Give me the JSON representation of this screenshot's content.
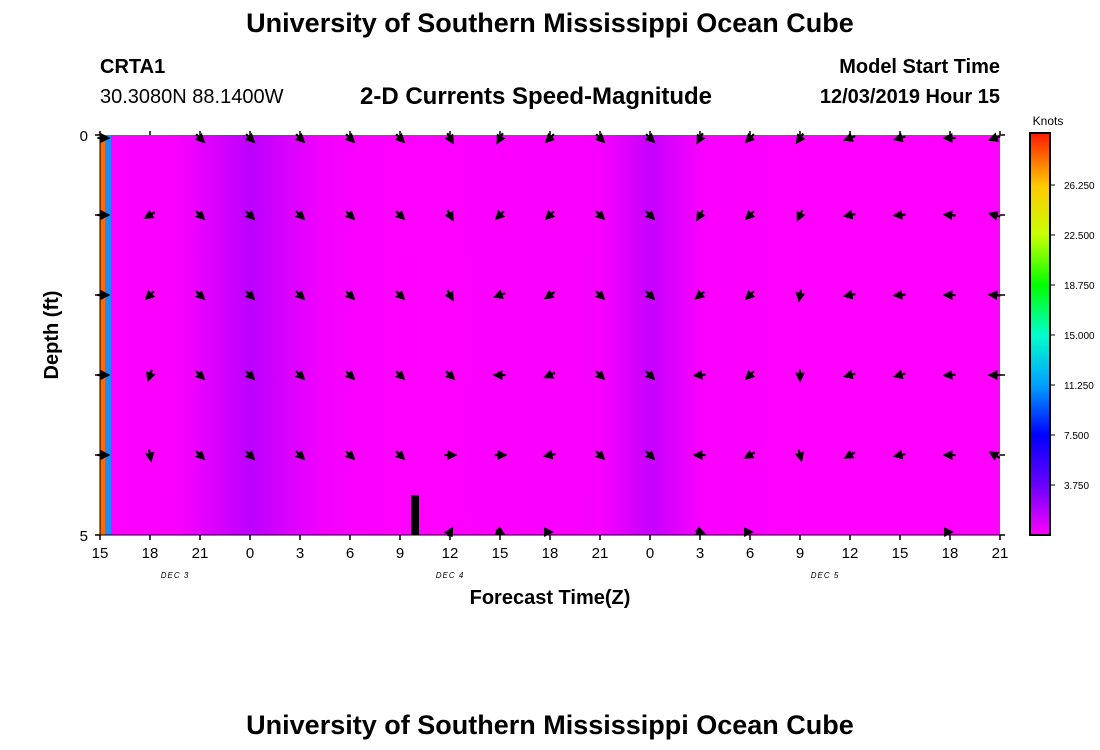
{
  "header": {
    "title": "University of Southern Mississippi Ocean Cube",
    "station": "CRTA1",
    "coords": "30.3080N 88.1400W",
    "subtitle": "2-D Currents Speed-Magnitude",
    "model_label": "Model Start Time",
    "model_time": "12/03/2019 Hour 15"
  },
  "footer": {
    "title": "University of Southern Mississippi Ocean Cube"
  },
  "colors": {
    "field_magenta": "#ff00ff",
    "field_violet": "#b800ff",
    "left_strip_orange": "#ff6a00",
    "left_strip_blue": "#1a8cff"
  },
  "chart_data": {
    "type": "heatmap",
    "xlabel": "Forecast Time(Z)",
    "ylabel": "Depth (ft)",
    "x_ticks": [
      "15",
      "18",
      "21",
      "0",
      "3",
      "6",
      "9",
      "12",
      "15",
      "18",
      "21",
      "0",
      "3",
      "6",
      "9",
      "12",
      "15",
      "18",
      "21"
    ],
    "day_labels": [
      {
        "label": "DEC 3",
        "at_tick": 1.5
      },
      {
        "label": "DEC 4",
        "at_tick": 7
      },
      {
        "label": "DEC 5",
        "at_tick": 14.5
      }
    ],
    "y_ticks": [
      {
        "label": "0",
        "value": 0
      },
      {
        "label": "",
        "value": 1
      },
      {
        "label": "",
        "value": 2
      },
      {
        "label": "",
        "value": 3
      },
      {
        "label": "",
        "value": 4
      },
      {
        "label": "5",
        "value": 5
      }
    ],
    "ylim": [
      0,
      5
    ],
    "colorbar": {
      "unit": "Knots",
      "ticks": [
        "26.250",
        "22.500",
        "18.750",
        "15.000",
        "11.250",
        "7.500",
        "3.750"
      ],
      "tick_values": [
        26.25,
        22.5,
        18.75,
        15.0,
        11.25,
        7.5,
        3.75
      ],
      "range": [
        0,
        30
      ]
    },
    "background_speed_profile": {
      "tick_index": [
        0,
        1.6,
        3.0,
        4.5,
        6.0,
        10.0,
        11.0,
        12.0,
        14.0,
        16.0,
        18.0
      ],
      "shade": [
        0.0,
        0.1,
        0.95,
        0.15,
        0.0,
        0.1,
        0.8,
        0.1,
        0.0,
        0.0,
        0.0
      ]
    },
    "current_now_marker": {
      "tick_index": 6.3,
      "depth_from": 4.5,
      "depth_to": 5
    },
    "vector_time_index": [
      0,
      1,
      2,
      3,
      4,
      5,
      6,
      7,
      8,
      9,
      10,
      11,
      12,
      13,
      14,
      15,
      16,
      17,
      18
    ],
    "vector_depths": [
      0,
      1,
      2,
      3,
      4,
      5
    ],
    "vector_angles_deg": [
      [
        0,
        210,
        45,
        45,
        45,
        45,
        45,
        60,
        120,
        135,
        45,
        45,
        120,
        135,
        125,
        160,
        165,
        180,
        160
      ],
      [
        0,
        150,
        45,
        45,
        45,
        45,
        45,
        60,
        135,
        135,
        45,
        45,
        120,
        135,
        115,
        170,
        175,
        185,
        195
      ],
      [
        0,
        135,
        45,
        45,
        45,
        45,
        45,
        60,
        160,
        145,
        45,
        45,
        140,
        135,
        100,
        170,
        175,
        180,
        185
      ],
      [
        0,
        110,
        45,
        45,
        45,
        45,
        45,
        45,
        180,
        155,
        45,
        45,
        175,
        135,
        90,
        165,
        165,
        175,
        180
      ],
      [
        0,
        80,
        45,
        45,
        45,
        45,
        45,
        0,
        0,
        170,
        45,
        45,
        180,
        150,
        75,
        150,
        170,
        180,
        210
      ],
      [
        0,
        0,
        0,
        0,
        0,
        0,
        0,
        300,
        30,
        0,
        0,
        0,
        20,
        0,
        0,
        0,
        0,
        0,
        0
      ]
    ],
    "vector_lengths": [
      [
        11,
        0,
        11,
        11,
        11,
        11,
        11,
        11,
        11,
        11,
        11,
        11,
        11,
        11,
        11,
        11,
        11,
        11,
        11
      ],
      [
        11,
        11,
        11,
        11,
        11,
        11,
        11,
        11,
        11,
        11,
        11,
        11,
        11,
        11,
        11,
        11,
        11,
        11,
        11
      ],
      [
        11,
        11,
        11,
        11,
        11,
        11,
        11,
        11,
        11,
        11,
        11,
        11,
        11,
        11,
        11,
        11,
        11,
        11,
        11
      ],
      [
        11,
        11,
        11,
        11,
        11,
        11,
        11,
        11,
        11,
        11,
        11,
        11,
        11,
        11,
        11,
        11,
        11,
        11,
        11
      ],
      [
        11,
        11,
        11,
        11,
        11,
        11,
        11,
        11,
        11,
        11,
        11,
        11,
        11,
        11,
        11,
        11,
        11,
        11,
        11
      ],
      [
        0,
        0,
        0,
        0,
        0,
        0,
        0,
        9,
        9,
        4,
        0,
        0,
        9,
        4,
        0,
        0,
        0,
        4,
        0
      ]
    ]
  }
}
